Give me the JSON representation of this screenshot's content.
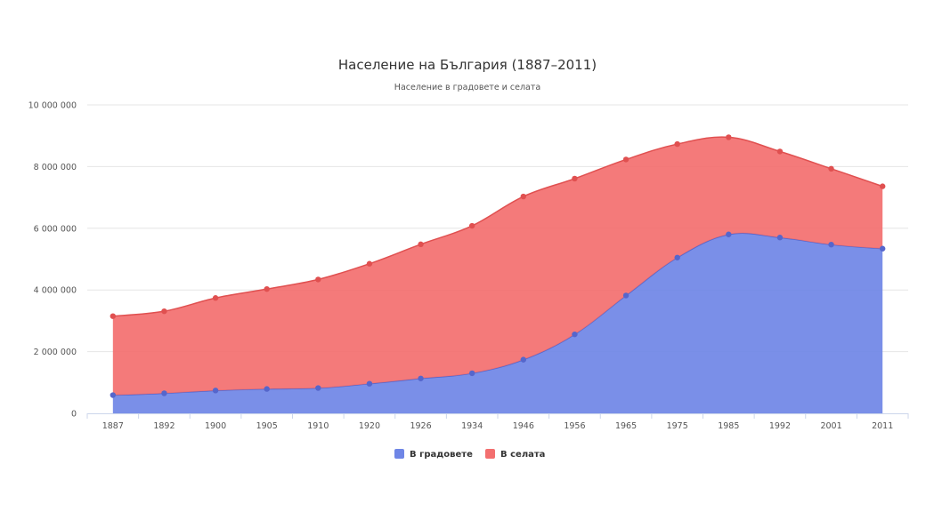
{
  "chart_data": {
    "type": "area",
    "stacked": true,
    "title": "Население на България (1887–2011)",
    "subtitle": "Население в градовете и селата",
    "categories": [
      "1887",
      "1892",
      "1900",
      "1905",
      "1910",
      "1920",
      "1926",
      "1934",
      "1946",
      "1956",
      "1965",
      "1975",
      "1985",
      "1992",
      "2001",
      "2011"
    ],
    "series": [
      {
        "name": "В градовете",
        "color": "#6f86e6",
        "marker_color": "#5566cc",
        "values": [
          590000,
          650000,
          740000,
          790000,
          820000,
          960000,
          1130000,
          1300000,
          1740000,
          2560000,
          3820000,
          5050000,
          5800000,
          5700000,
          5470000,
          5340000
        ]
      },
      {
        "name": "В селата",
        "color": "#f36f6f",
        "marker_color": "#e05050",
        "values": [
          2560000,
          2660000,
          3000000,
          3240000,
          3520000,
          3890000,
          4350000,
          4780000,
          5290000,
          5050000,
          4410000,
          3680000,
          3150000,
          2790000,
          2460000,
          2020000
        ]
      }
    ],
    "y_ticks": [
      "0",
      "2 000 000",
      "4 000 000",
      "6 000 000",
      "8 000 000",
      "10 000 000"
    ],
    "ylim": [
      0,
      10000000
    ],
    "grid": true,
    "legend_position": "bottom-center"
  }
}
